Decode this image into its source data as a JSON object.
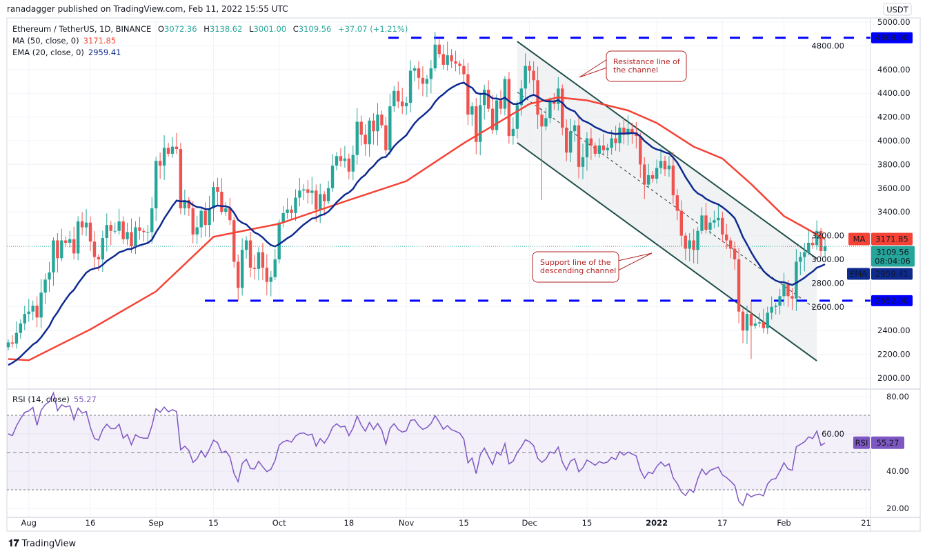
{
  "header": {
    "published": "ranadagger published on TradingView.com, Feb 11, 2022 15:55 UTC"
  },
  "legend": {
    "symbol": "Ethereum / TetherUS, 1D, BINANCE",
    "o_label": "O",
    "open": "3072.36",
    "h_label": "H",
    "high": "3138.62",
    "l_label": "L",
    "low": "3001.00",
    "c_label": "C",
    "close": "3109.56",
    "change": "+37.07 (+1.21%)",
    "ma_label": "MA (50, close, 0)",
    "ma_value": "3171.85",
    "ema_label": "EMA (20, close, 0)",
    "ema_value": "2959.41",
    "rsi_label": "RSI (14, close)",
    "rsi_value": "55.27"
  },
  "price_axis": {
    "currency": "USDT",
    "ticks": [
      "5000.00",
      "4800.00",
      "4600.00",
      "4400.00",
      "4200.00",
      "4000.00",
      "3800.00",
      "3600.00",
      "3400.00",
      "3200.00",
      "3000.00",
      "2800.00",
      "2600.00",
      "2400.00",
      "2200.00",
      "2000.00"
    ],
    "ma_tag": "MA",
    "ma_tag_value": "3171.85",
    "price_tag": "3109.56",
    "countdown": "08:04:06",
    "ema_tag": "EMA",
    "ema_tag_value": "2959.41",
    "resistance_level": "4868.00",
    "support_level": "2652.00"
  },
  "rsi_axis": {
    "ticks": [
      "80.00",
      "60.00",
      "40.00",
      "20.00"
    ],
    "tag": "RSI",
    "tag_value": "55.27"
  },
  "time_axis": [
    {
      "label": "Aug",
      "date": "2021-08-01"
    },
    {
      "label": "16",
      "date": "2021-08-16"
    },
    {
      "label": "Sep",
      "date": "2021-09-01"
    },
    {
      "label": "15",
      "date": "2021-09-15"
    },
    {
      "label": "Oct",
      "date": "2021-10-01"
    },
    {
      "label": "18",
      "date": "2021-10-18"
    },
    {
      "label": "Nov",
      "date": "2021-11-01"
    },
    {
      "label": "15",
      "date": "2021-11-15"
    },
    {
      "label": "Dec",
      "date": "2021-12-01"
    },
    {
      "label": "15",
      "date": "2021-12-15"
    },
    {
      "label": "2022",
      "date": "2022-01-01"
    },
    {
      "label": "17",
      "date": "2022-01-17"
    },
    {
      "label": "Feb",
      "date": "2022-02-01"
    },
    {
      "label": "21",
      "date": "2022-02-21"
    }
  ],
  "annotations": {
    "resistance": "Resistance line of the channel",
    "support": "Support line of the descending channel"
  },
  "colors": {
    "up": "#26a69a",
    "down": "#ef5350",
    "ma": "#f44336",
    "ema": "#0d2a8f",
    "rsi": "#7e57c2",
    "level": "#0000ff",
    "channel": "#1f4f4a"
  },
  "chart_data": {
    "type": "candlestick",
    "ylim": [
      2000,
      5000
    ],
    "rsi_ylim": [
      20,
      80
    ],
    "rsi_bands": [
      30,
      50,
      70
    ],
    "horizontal_levels": [
      4868.0,
      2652.0
    ],
    "closes": [
      2300,
      2290,
      2380,
      2460,
      2540,
      2560,
      2610,
      2510,
      2720,
      2830,
      2890,
      3160,
      3010,
      3160,
      3140,
      3170,
      3050,
      3320,
      3270,
      3310,
      3150,
      3020,
      3000,
      3180,
      3290,
      3240,
      3240,
      3320,
      3170,
      3230,
      3110,
      3270,
      3240,
      3230,
      3230,
      3430,
      3830,
      3790,
      3940,
      3890,
      3950,
      3930,
      3430,
      3500,
      3430,
      3210,
      3270,
      3410,
      3290,
      3430,
      3610,
      3570,
      3400,
      3430,
      3330,
      2980,
      2760,
      3080,
      3160,
      2930,
      2920,
      3060,
      2930,
      2810,
      2850,
      3000,
      3310,
      3390,
      3420,
      3390,
      3520,
      3580,
      3590,
      3560,
      3580,
      3420,
      3550,
      3490,
      3600,
      3790,
      3870,
      3830,
      3850,
      3740,
      3880,
      4160,
      4050,
      3970,
      4170,
      4080,
      4220,
      4130,
      3920,
      4290,
      4420,
      4330,
      4290,
      4320,
      4590,
      4610,
      4530,
      4480,
      4520,
      4610,
      4810,
      4730,
      4640,
      4720,
      4670,
      4650,
      4630,
      4560,
      4220,
      4290,
      3990,
      4300,
      4430,
      4270,
      4090,
      4340,
      4270,
      4520,
      4040,
      4100,
      4300,
      4440,
      4630,
      4590,
      4510,
      4220,
      4120,
      4190,
      4340,
      4310,
      4440,
      4110,
      3900,
      4080,
      4130,
      3780,
      3860,
      4020,
      3960,
      3890,
      3960,
      3920,
      3940,
      4020,
      3980,
      4110,
      4050,
      4100,
      4070,
      4040,
      3800,
      3630,
      3710,
      3680,
      3770,
      3830,
      3760,
      3790,
      3540,
      3410,
      3200,
      3090,
      3160,
      3080,
      3240,
      3370,
      3250,
      3310,
      3330,
      3350,
      3210,
      3160,
      3090,
      3000,
      2560,
      2400,
      2540,
      2440,
      2460,
      2470,
      2420,
      2550,
      2600,
      2610,
      2690,
      2790,
      2690,
      2670,
      2980,
      3020,
      3060,
      3140,
      3120,
      3240,
      3070,
      3109.56
    ],
    "notable_lows": [
      {
        "date": "2021-09-21",
        "low": 2650
      },
      {
        "date": "2021-12-04",
        "low": 3500
      },
      {
        "date": "2022-01-24",
        "low": 2160
      }
    ],
    "ma50": [
      {
        "date": "2021-07-27",
        "value": 2160
      },
      {
        "date": "2021-08-01",
        "value": 2150
      },
      {
        "date": "2021-08-16",
        "value": 2410
      },
      {
        "date": "2021-09-01",
        "value": 2730
      },
      {
        "date": "2021-09-15",
        "value": 3190
      },
      {
        "date": "2021-10-01",
        "value": 3300
      },
      {
        "date": "2021-10-18",
        "value": 3500
      },
      {
        "date": "2021-11-01",
        "value": 3660
      },
      {
        "date": "2021-11-15",
        "value": 3980
      },
      {
        "date": "2021-12-01",
        "value": 4310
      },
      {
        "date": "2021-12-08",
        "value": 4365
      },
      {
        "date": "2021-12-15",
        "value": 4340
      },
      {
        "date": "2021-12-25",
        "value": 4255
      },
      {
        "date": "2022-01-01",
        "value": 4150
      },
      {
        "date": "2022-01-10",
        "value": 3950
      },
      {
        "date": "2022-01-17",
        "value": 3850
      },
      {
        "date": "2022-01-24",
        "value": 3635
      },
      {
        "date": "2022-02-01",
        "value": 3365
      },
      {
        "date": "2022-02-11",
        "value": 3171.85
      }
    ],
    "channel": {
      "resistance": [
        {
          "date": "2021-11-28",
          "price": 4837
        },
        {
          "date": "2022-02-09",
          "price": 3006
        }
      ],
      "support": [
        {
          "date": "2021-11-28",
          "price": 3983
        },
        {
          "date": "2022-02-09",
          "price": 2145
        }
      ]
    }
  }
}
